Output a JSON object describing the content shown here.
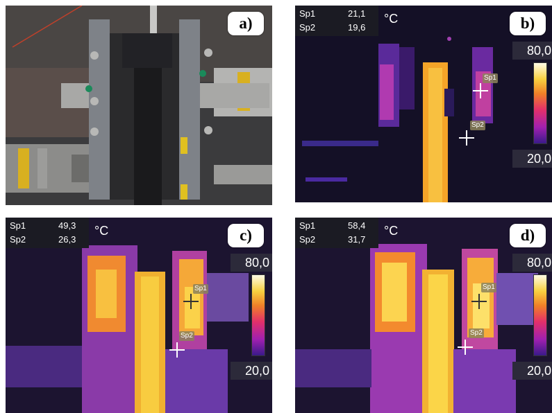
{
  "panels": {
    "a": {
      "label": "a)"
    },
    "b": {
      "label": "b)",
      "readout": [
        {
          "name": "Sp1",
          "value": "21,1"
        },
        {
          "name": "Sp2",
          "value": "19,6"
        }
      ],
      "unit": "°C",
      "scale_max": "80,0",
      "scale_min": "20,0",
      "spot_labels": [
        "Sp1",
        "Sp2"
      ]
    },
    "c": {
      "label": "c)",
      "readout": [
        {
          "name": "Sp1",
          "value": "49,3"
        },
        {
          "name": "Sp2",
          "value": "26,3"
        }
      ],
      "unit": "°C",
      "scale_max": "80,0",
      "scale_min": "20,0",
      "spot_labels": [
        "Sp1",
        "Sp2"
      ]
    },
    "d": {
      "label": "d)",
      "readout": [
        {
          "name": "Sp1",
          "value": "58,4"
        },
        {
          "name": "Sp2",
          "value": "31,7"
        }
      ],
      "unit": "°C",
      "scale_max": "80,0",
      "scale_min": "20,0",
      "spot_labels": [
        "Sp1",
        "Sp2"
      ]
    }
  },
  "colors": {
    "thermal_background": "#141026",
    "palette_cold": "#3a1a8a",
    "palette_mid": "#e3306a",
    "palette_hot": "#f8d040",
    "palette_max": "#fffbe6"
  }
}
